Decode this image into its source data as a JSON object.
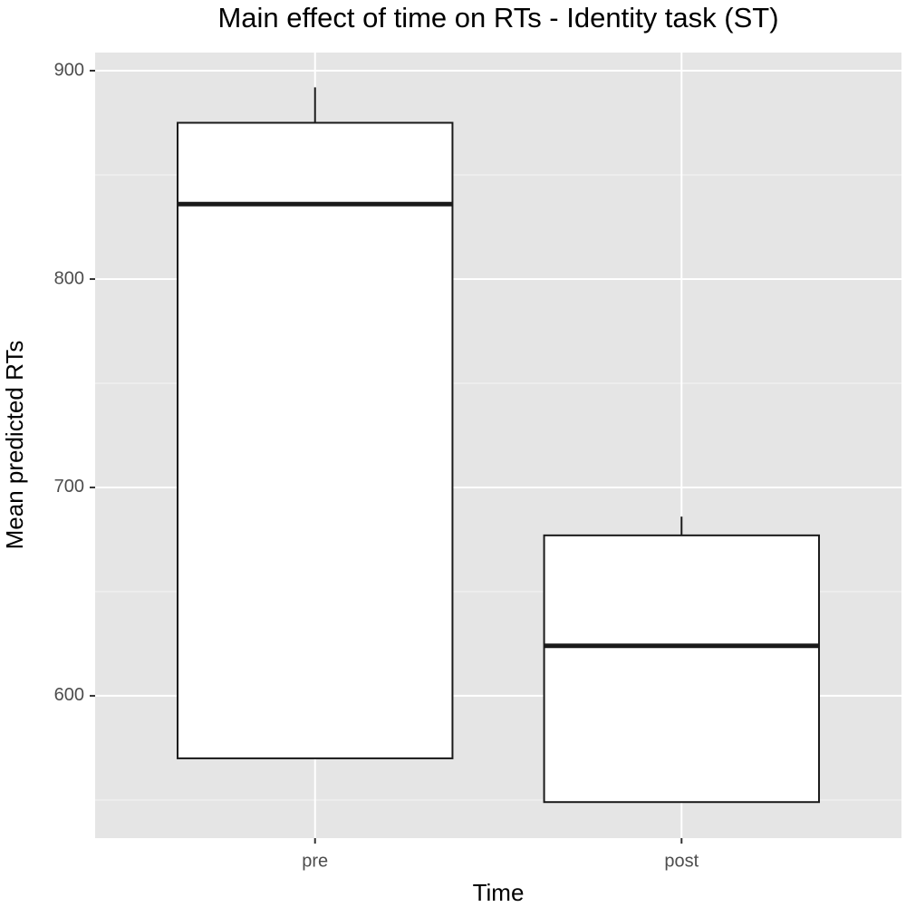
{
  "chart_data": {
    "type": "boxplot",
    "title": "Main effect of time on RTs - Identity task (ST)",
    "x_label": "Time",
    "y_label": "Mean predicted RTs",
    "categories": [
      "pre",
      "post"
    ],
    "min": [
      570,
      549
    ],
    "q1": [
      570,
      549
    ],
    "median": [
      836,
      624
    ],
    "q3": [
      875,
      677
    ],
    "max": [
      892,
      686
    ],
    "box_color": "#ffffff",
    "line_color": "#1a1a1a",
    "ylim": [
      531.7,
      908.7
    ],
    "yticks": [
      600,
      700,
      800,
      900
    ],
    "minor_yticks": [
      550,
      650,
      750,
      850
    ],
    "grid": true,
    "panel_color": "#e5e5e5"
  }
}
